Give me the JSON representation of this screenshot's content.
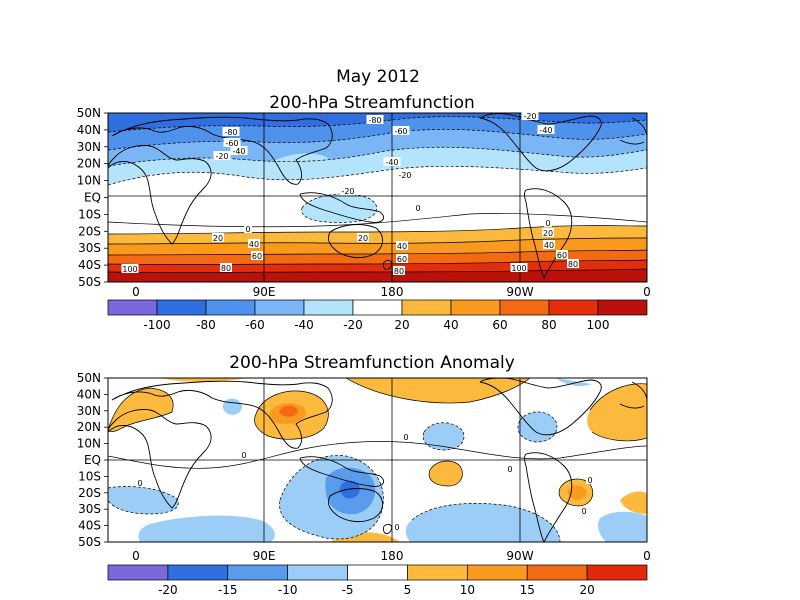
{
  "figure": {
    "date_title": "May 2012",
    "top_title": "200-hPa Streamfunction",
    "bottom_title": "200-hPa Streamfunction Anomaly"
  },
  "axes": {
    "lat_labels": [
      "50N",
      "40N",
      "30N",
      "20N",
      "10N",
      "EQ",
      "10S",
      "20S",
      "30S",
      "40S",
      "50S"
    ],
    "lon_labels": [
      "0",
      "90E",
      "180",
      "90W",
      "0"
    ]
  },
  "top_panel": {
    "contour_labels": [
      "-80",
      "-80",
      "-60",
      "-60",
      "-40",
      "-40",
      "-40",
      "-20",
      "-20",
      "-20",
      "-20",
      "0",
      "0",
      "0",
      "20",
      "20",
      "20",
      "40",
      "40",
      "40",
      "60",
      "60",
      "60",
      "80",
      "80",
      "80",
      "100",
      "100"
    ],
    "colorbar": {
      "labels": [
        "-100",
        "-80",
        "-60",
        "-40",
        "-20",
        "20",
        "40",
        "60",
        "80",
        "100"
      ],
      "colors": [
        "#7b68dc",
        "#2f6fe0",
        "#4f92ec",
        "#7ab6f5",
        "#b4e4fb",
        "#ffffff",
        "#fbb93d",
        "#f99a1e",
        "#f26a12",
        "#e42e0b",
        "#b8120a"
      ]
    }
  },
  "bottom_panel": {
    "contour_labels": [
      "0",
      "0",
      "0",
      "0",
      "0",
      "0",
      "0"
    ],
    "colorbar": {
      "labels": [
        "-20",
        "-15",
        "-10",
        "-5",
        "5",
        "10",
        "15",
        "20"
      ],
      "colors": [
        "#7b68dc",
        "#2f6fe0",
        "#5a9cec",
        "#9bcdf6",
        "#ffffff",
        "#fbb93d",
        "#f99a1e",
        "#f26a12",
        "#e22a0a"
      ]
    }
  }
}
